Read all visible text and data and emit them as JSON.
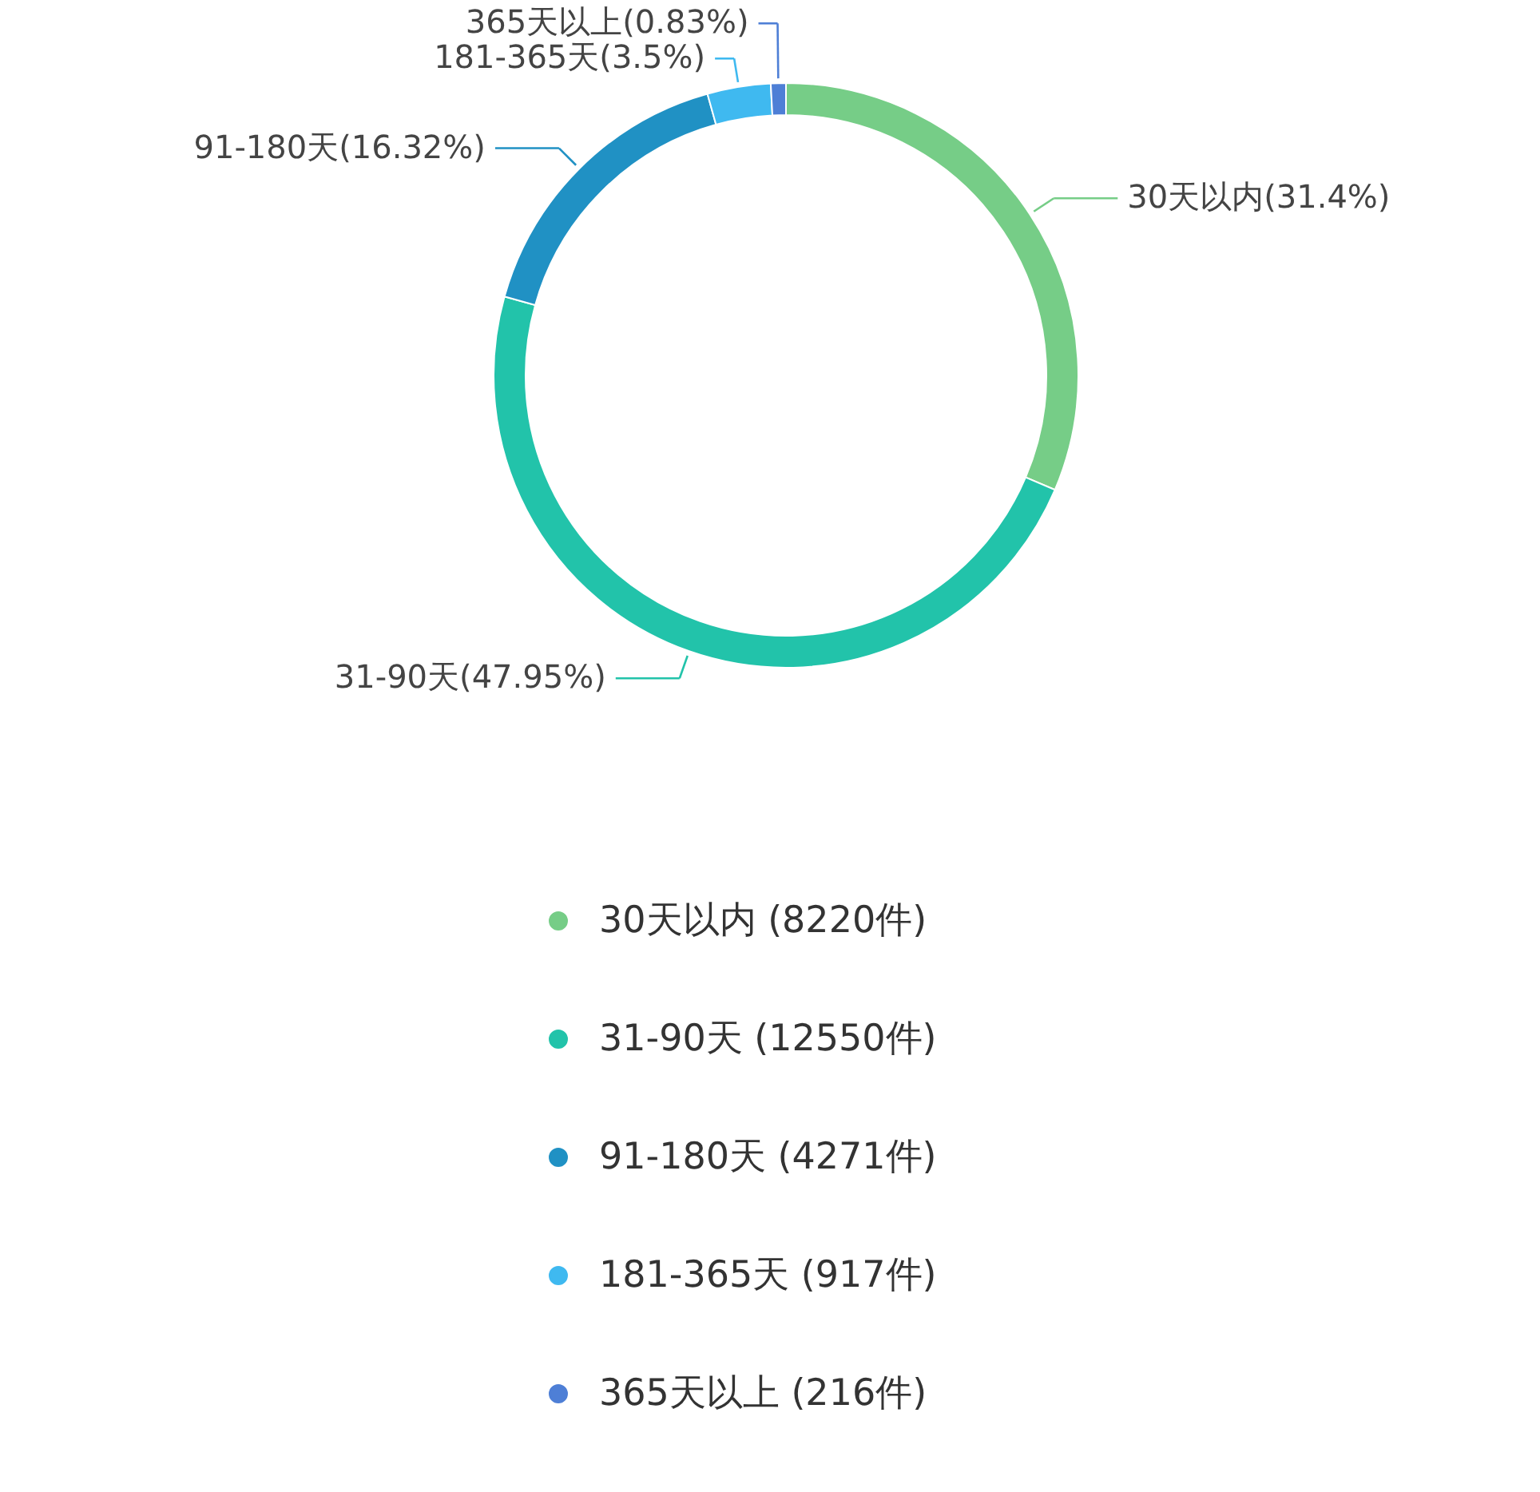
{
  "chart_data": {
    "type": "donut",
    "categories": [
      "30天以内  (8220件)",
      "31-90天  (12550件)",
      "91-180天  (4271件)",
      "181-365天  (917件)",
      "365天以上  (216件)"
    ],
    "values": [
      31.4,
      47.95,
      16.32,
      3.5,
      0.83
    ],
    "value_labels": [
      "30天以内(31.4%)",
      "31-90天(47.95%)",
      "91-180天(16.32%)",
      "181-365天(3.5%)",
      "365天以上(0.83%)"
    ],
    "colors": [
      "#76cd87",
      "#22c3aa",
      "#2091c4",
      "#3fb9f0",
      "#4e7fd6"
    ],
    "legend": "bottom"
  }
}
